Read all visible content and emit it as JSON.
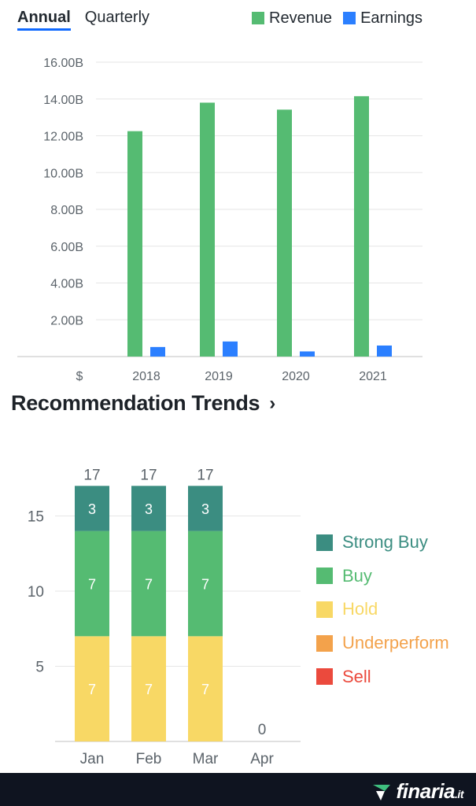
{
  "tabs": [
    {
      "label": "Annual",
      "active": true
    },
    {
      "label": "Quarterly",
      "active": false
    }
  ],
  "legend_top": [
    {
      "label": "Revenue",
      "color": "#55bb72"
    },
    {
      "label": "Earnings",
      "color": "#2b7fff"
    }
  ],
  "section": {
    "title": "Recommendation Trends",
    "chevron": "›"
  },
  "footer": {
    "brand": "finaria",
    "brand_suffix": ".it",
    "logo_icon": "finaria-logo-icon"
  },
  "chart_data": [
    {
      "type": "bar",
      "title": "",
      "categories": [
        "2018",
        "2019",
        "2020",
        "2021"
      ],
      "series": [
        {
          "name": "Revenue",
          "color": "#55bb72",
          "values": [
            12.25,
            13.8,
            13.42,
            14.15
          ]
        },
        {
          "name": "Earnings",
          "color": "#2b7fff",
          "values": [
            0.52,
            0.82,
            0.28,
            0.6
          ]
        }
      ],
      "y_ticks": [
        "2.00B",
        "4.00B",
        "6.00B",
        "8.00B",
        "10.00B",
        "12.00B",
        "14.00B",
        "16.00B"
      ],
      "x_prefix": "$",
      "ylim": [
        0,
        16
      ],
      "unit": "B",
      "grid": true,
      "legend_position": "top-right"
    },
    {
      "type": "bar",
      "stacked": true,
      "categories": [
        "Jan",
        "Feb",
        "Mar",
        "Apr"
      ],
      "series": [
        {
          "name": "Sell",
          "color": "#eb4a3d",
          "values": [
            0,
            0,
            0,
            0
          ]
        },
        {
          "name": "Underperform",
          "color": "#f3a24b",
          "values": [
            0,
            0,
            0,
            0
          ]
        },
        {
          "name": "Hold",
          "color": "#f8d865",
          "values": [
            7,
            7,
            7,
            0
          ]
        },
        {
          "name": "Buy",
          "color": "#55bb72",
          "values": [
            7,
            7,
            7,
            0
          ]
        },
        {
          "name": "Strong Buy",
          "color": "#3b8d81",
          "values": [
            3,
            3,
            3,
            0
          ]
        }
      ],
      "totals": [
        17,
        17,
        17,
        0
      ],
      "y_ticks": [
        5,
        10,
        15
      ],
      "ylim": [
        0,
        17
      ],
      "legend": [
        {
          "label": "Strong Buy",
          "color": "#3b8d81"
        },
        {
          "label": "Buy",
          "color": "#55bb72"
        },
        {
          "label": "Hold",
          "color": "#f8d865"
        },
        {
          "label": "Underperform",
          "color": "#f3a24b"
        },
        {
          "label": "Sell",
          "color": "#eb4a3d"
        }
      ],
      "legend_position": "right",
      "grid": true
    }
  ]
}
